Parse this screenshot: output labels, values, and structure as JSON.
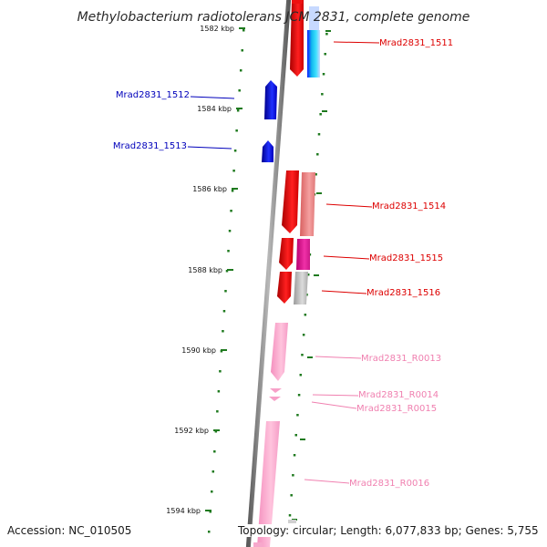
{
  "title": "Methylobacterium radiotolerans JCM 2831, complete genome",
  "footer": {
    "accession": "Accession: NC_010505",
    "topology": "Topology: circular; Length: 6,077,833 bp; Genes: 5,755"
  },
  "colors": {
    "backbone": "#8a8a8a",
    "tick": "#1f7a1f",
    "cds_label": "#dd0000",
    "cds_label_blue": "#0000bb",
    "rna_label": "#f080b0",
    "red_gene": "#ee1111",
    "blue_gene": "#1111ee",
    "pink_gene": "#f7a8cc",
    "salmon_gene": "#f08080",
    "magenta_gene": "#e01890",
    "grey_gene": "#bdbdbd",
    "cyan_gene": "#19c4e6"
  },
  "ticks": [
    {
      "label": "1582 kbp"
    },
    {
      "label": "1584 kbp"
    },
    {
      "label": "1586 kbp"
    },
    {
      "label": "1588 kbp"
    },
    {
      "label": "1590 kbp"
    },
    {
      "label": "1592 kbp"
    },
    {
      "label": "1594 kbp"
    }
  ],
  "genes": [
    {
      "label": "Mrad2831_1511",
      "color_key": "cds_label"
    },
    {
      "label": "Mrad2831_1512",
      "color_key": "cds_label_blue"
    },
    {
      "label": "Mrad2831_1513",
      "color_key": "cds_label_blue"
    },
    {
      "label": "Mrad2831_1514",
      "color_key": "cds_label"
    },
    {
      "label": "Mrad2831_1515",
      "color_key": "cds_label"
    },
    {
      "label": "Mrad2831_1516",
      "color_key": "cds_label"
    },
    {
      "label": "Mrad2831_R0013",
      "color_key": "rna_label"
    },
    {
      "label": "Mrad2831_R0014",
      "color_key": "rna_label"
    },
    {
      "label": "Mrad2831_R0015",
      "color_key": "rna_label"
    },
    {
      "label": "Mrad2831_R0016",
      "color_key": "rna_label"
    }
  ]
}
